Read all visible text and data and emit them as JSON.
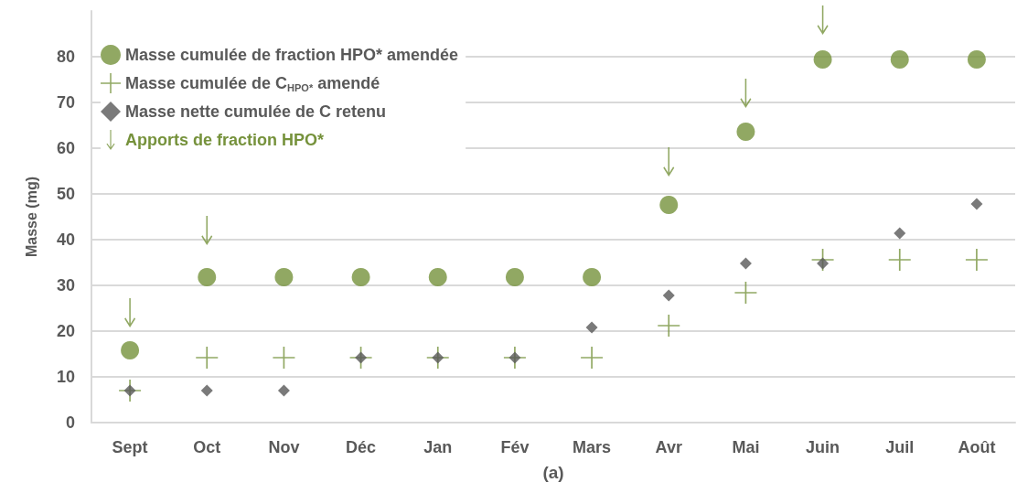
{
  "chart_data": {
    "type": "scatter",
    "xlabel": "(a)",
    "ylabel": "Masse (mg)",
    "categories": [
      "Sept",
      "Oct",
      "Nov",
      "Déc",
      "Jan",
      "Fév",
      "Mars",
      "Avr",
      "Mai",
      "Juin",
      "Juil",
      "Août"
    ],
    "ylim": [
      0,
      90
    ],
    "yticks": [
      0,
      10,
      20,
      30,
      40,
      50,
      60,
      70,
      80
    ],
    "grid": "y",
    "legend": "top left",
    "series": [
      {
        "name": "Masse cumulée de fraction HPO* amendée",
        "color": "#76923c",
        "marker": "circle",
        "values": [
          15.8,
          31.8,
          31.8,
          31.8,
          31.8,
          31.8,
          31.8,
          47.6,
          63.6,
          79.4,
          79.4,
          79.4
        ]
      },
      {
        "name": "Masse cumulée de C$_{HPO*}$ amendé",
        "color": "#76923c",
        "marker": "cross",
        "values": [
          7,
          14.2,
          14.2,
          14.2,
          14.2,
          14.2,
          14.2,
          21.2,
          28.4,
          35.6,
          35.6,
          35.6
        ]
      },
      {
        "name": "Masse nette cumulée de C retenu",
        "color": "#595959",
        "marker": "diamond",
        "values": [
          7,
          7,
          7,
          14.2,
          14.2,
          14.2,
          20.8,
          27.8,
          34.8,
          34.8,
          41.4,
          47.8
        ]
      },
      {
        "name": "Apports de fraction HPO*",
        "color": "#76923c",
        "values": [
          24,
          42,
          null,
          null,
          null,
          null,
          null,
          57,
          72,
          88,
          null,
          null
        ]
      }
    ]
  }
}
